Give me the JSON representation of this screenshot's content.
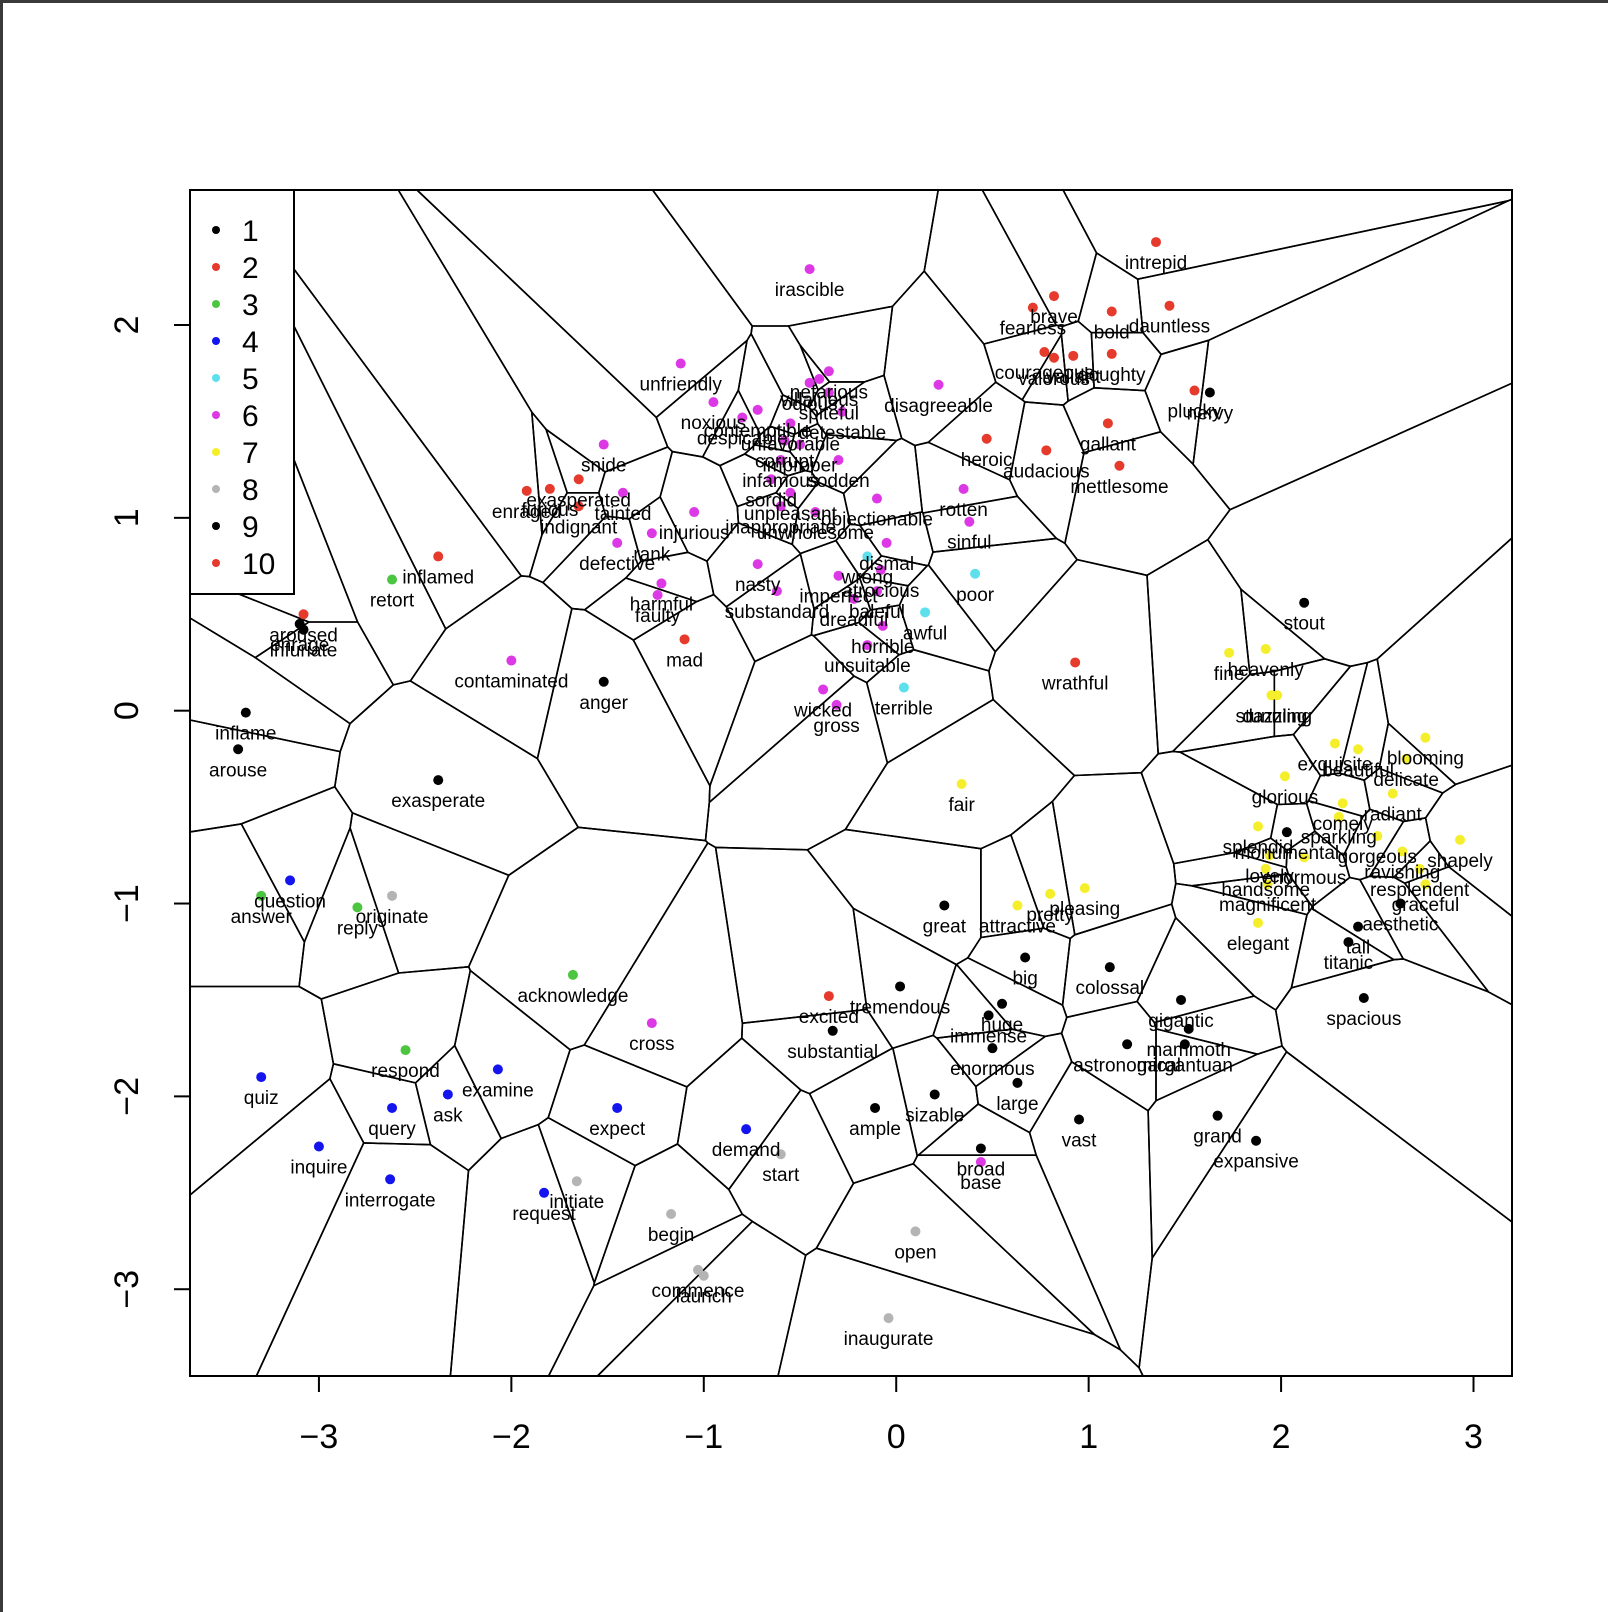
{
  "chart_data": {
    "type": "scatter",
    "title": "",
    "xlabel": "",
    "ylabel": "",
    "xlim": [
      -3.67,
      3.2
    ],
    "ylim": [
      -3.45,
      2.7
    ],
    "x_ticks": [
      -3,
      -2,
      -1,
      0,
      1,
      2,
      3
    ],
    "y_ticks": [
      -3,
      -2,
      -1,
      0,
      1,
      2
    ],
    "x_tick_labels": [
      "−3",
      "−2",
      "−1",
      "0",
      "1",
      "2",
      "3"
    ],
    "y_tick_labels": [
      "−3",
      "−2",
      "−1",
      "0",
      "1",
      "2"
    ],
    "grid": false,
    "voronoi_overlay": true,
    "legend": {
      "position": "top-left",
      "entries": [
        {
          "label": "1",
          "color": "#000000"
        },
        {
          "label": "2",
          "color": "#e53a2c"
        },
        {
          "label": "3",
          "color": "#4cc641"
        },
        {
          "label": "4",
          "color": "#1414ee"
        },
        {
          "label": "5",
          "color": "#5de0ec"
        },
        {
          "label": "6",
          "color": "#dd38e6"
        },
        {
          "label": "7",
          "color": "#f5ef2b"
        },
        {
          "label": "8",
          "color": "#b4b4b4"
        },
        {
          "label": "9",
          "color": "#000000"
        },
        {
          "label": "10",
          "color": "#e53a2c"
        }
      ]
    },
    "points": [
      {
        "label": "irascible",
        "x": -0.45,
        "y": 2.29,
        "group": 6
      },
      {
        "label": "intrepid",
        "x": 1.35,
        "y": 2.43,
        "group": 2
      },
      {
        "label": "fearless",
        "x": 0.71,
        "y": 2.09,
        "group": 2
      },
      {
        "label": "brave",
        "x": 0.82,
        "y": 2.15,
        "group": 2
      },
      {
        "label": "courageous",
        "x": 0.77,
        "y": 1.86,
        "group": 2
      },
      {
        "label": "bold",
        "x": 1.12,
        "y": 2.07,
        "group": 2
      },
      {
        "label": "dauntless",
        "x": 1.42,
        "y": 2.1,
        "group": 2
      },
      {
        "label": "valorous",
        "x": 0.82,
        "y": 1.83,
        "group": 2
      },
      {
        "label": "valiant",
        "x": 0.92,
        "y": 1.84,
        "group": 2
      },
      {
        "label": "doughty",
        "x": 1.12,
        "y": 1.85,
        "group": 2
      },
      {
        "label": "plucky",
        "x": 1.55,
        "y": 1.66,
        "group": 2
      },
      {
        "label": "nervy",
        "x": 1.63,
        "y": 1.65,
        "group": 1
      },
      {
        "label": "gallant",
        "x": 1.1,
        "y": 1.49,
        "group": 2
      },
      {
        "label": "heroic",
        "x": 0.47,
        "y": 1.41,
        "group": 2
      },
      {
        "label": "audacious",
        "x": 0.78,
        "y": 1.35,
        "group": 2
      },
      {
        "label": "mettlesome",
        "x": 1.16,
        "y": 1.27,
        "group": 2
      },
      {
        "label": "disagreeable",
        "x": 0.22,
        "y": 1.69,
        "group": 6
      },
      {
        "label": "unfriendly",
        "x": -1.12,
        "y": 1.8,
        "group": 6
      },
      {
        "label": "nefarious",
        "x": -0.35,
        "y": 1.76,
        "group": 6
      },
      {
        "label": "odious",
        "x": -0.45,
        "y": 1.7,
        "group": 6
      },
      {
        "label": "villainous",
        "x": -0.4,
        "y": 1.72,
        "group": 6
      },
      {
        "label": "spiteful",
        "x": -0.35,
        "y": 1.65,
        "group": 6
      },
      {
        "label": "detestable",
        "x": -0.28,
        "y": 1.55,
        "group": 6
      },
      {
        "label": "noxious",
        "x": -0.95,
        "y": 1.6,
        "group": 6
      },
      {
        "label": "contemptible",
        "x": -0.72,
        "y": 1.56,
        "group": 6
      },
      {
        "label": "despicable",
        "x": -0.8,
        "y": 1.52,
        "group": 6
      },
      {
        "label": "unfavorable",
        "x": -0.55,
        "y": 1.49,
        "group": 6
      },
      {
        "label": "corrupt",
        "x": -0.58,
        "y": 1.4,
        "group": 6
      },
      {
        "label": "improper",
        "x": -0.5,
        "y": 1.38,
        "group": 6
      },
      {
        "label": "sodden",
        "x": -0.3,
        "y": 1.3,
        "group": 6
      },
      {
        "label": "infamous",
        "x": -0.6,
        "y": 1.3,
        "group": 6
      },
      {
        "label": "sordid",
        "x": -0.65,
        "y": 1.2,
        "group": 6
      },
      {
        "label": "unpleasant",
        "x": -0.55,
        "y": 1.13,
        "group": 6
      },
      {
        "label": "objectionable",
        "x": -0.1,
        "y": 1.1,
        "group": 6
      },
      {
        "label": "inappropriate",
        "x": -0.6,
        "y": 1.06,
        "group": 6
      },
      {
        "label": "unwholesome",
        "x": -0.42,
        "y": 1.03,
        "group": 6
      },
      {
        "label": "snide",
        "x": -1.52,
        "y": 1.38,
        "group": 6
      },
      {
        "label": "exasperated",
        "x": -1.65,
        "y": 1.2,
        "group": 10
      },
      {
        "label": "furious",
        "x": -1.8,
        "y": 1.15,
        "group": 10
      },
      {
        "label": "enraged",
        "x": -1.92,
        "y": 1.14,
        "group": 10
      },
      {
        "label": "tainted",
        "x": -1.42,
        "y": 1.13,
        "group": 6
      },
      {
        "label": "indignant",
        "x": -1.65,
        "y": 1.06,
        "group": 10
      },
      {
        "label": "injurious",
        "x": -1.05,
        "y": 1.03,
        "group": 6
      },
      {
        "label": "rank",
        "x": -1.27,
        "y": 0.92,
        "group": 6
      },
      {
        "label": "defective",
        "x": -1.45,
        "y": 0.87,
        "group": 6
      },
      {
        "label": "rotten",
        "x": 0.35,
        "y": 1.15,
        "group": 6
      },
      {
        "label": "sinful",
        "x": 0.38,
        "y": 0.98,
        "group": 6
      },
      {
        "label": "dismal",
        "x": -0.05,
        "y": 0.87,
        "group": 6
      },
      {
        "label": "wrong",
        "x": -0.15,
        "y": 0.8,
        "group": 5
      },
      {
        "label": "imperfect",
        "x": -0.3,
        "y": 0.7,
        "group": 6
      },
      {
        "label": "atrocious",
        "x": -0.08,
        "y": 0.73,
        "group": 6
      },
      {
        "label": "baleful",
        "x": -0.1,
        "y": 0.62,
        "group": 6
      },
      {
        "label": "poor",
        "x": 0.41,
        "y": 0.71,
        "group": 5
      },
      {
        "label": "nasty",
        "x": -0.72,
        "y": 0.76,
        "group": 6
      },
      {
        "label": "dreadful",
        "x": -0.22,
        "y": 0.58,
        "group": 6
      },
      {
        "label": "harmful",
        "x": -1.22,
        "y": 0.66,
        "group": 6
      },
      {
        "label": "faulty",
        "x": -1.24,
        "y": 0.6,
        "group": 6
      },
      {
        "label": "substandard",
        "x": -0.62,
        "y": 0.62,
        "group": 6
      },
      {
        "label": "awful",
        "x": 0.15,
        "y": 0.51,
        "group": 5
      },
      {
        "label": "horrible",
        "x": -0.07,
        "y": 0.44,
        "group": 6
      },
      {
        "label": "unsuitable",
        "x": -0.15,
        "y": 0.34,
        "group": 6
      },
      {
        "label": "terrible",
        "x": 0.04,
        "y": 0.12,
        "group": 5
      },
      {
        "label": "wicked",
        "x": -0.38,
        "y": 0.11,
        "group": 6
      },
      {
        "label": "gross",
        "x": -0.31,
        "y": 0.03,
        "group": 6
      },
      {
        "label": "mad",
        "x": -1.1,
        "y": 0.37,
        "group": 10
      },
      {
        "label": "inflamed",
        "x": -2.38,
        "y": 0.8,
        "group": 10
      },
      {
        "label": "retort",
        "x": -2.62,
        "y": 0.68,
        "group": 3
      },
      {
        "label": "aroused",
        "x": -3.08,
        "y": 0.5,
        "group": 10
      },
      {
        "label": "enrage",
        "x": -3.1,
        "y": 0.45,
        "group": 1
      },
      {
        "label": "infuriate",
        "x": -3.08,
        "y": 0.42,
        "group": 1
      },
      {
        "label": "contaminated",
        "x": -2.0,
        "y": 0.26,
        "group": 6
      },
      {
        "label": "anger",
        "x": -1.52,
        "y": 0.15,
        "group": 1
      },
      {
        "label": "inflame",
        "x": -3.38,
        "y": -0.01,
        "group": 1
      },
      {
        "label": "arouse",
        "x": -3.42,
        "y": -0.2,
        "group": 1
      },
      {
        "label": "exasperate",
        "x": -2.38,
        "y": -0.36,
        "group": 1
      },
      {
        "label": "wrathful",
        "x": 0.93,
        "y": 0.25,
        "group": 2
      },
      {
        "label": "fair",
        "x": 0.34,
        "y": -0.38,
        "group": 7
      },
      {
        "label": "stout",
        "x": 2.12,
        "y": 0.56,
        "group": 1
      },
      {
        "label": "fine",
        "x": 1.73,
        "y": 0.3,
        "group": 7
      },
      {
        "label": "heavenly",
        "x": 1.92,
        "y": 0.32,
        "group": 7
      },
      {
        "label": "stunning",
        "x": 1.95,
        "y": 0.08,
        "group": 7
      },
      {
        "label": "dazzling",
        "x": 1.98,
        "y": 0.08,
        "group": 7
      },
      {
        "label": "glorious",
        "x": 2.02,
        "y": -0.34,
        "group": 7
      },
      {
        "label": "exquisite",
        "x": 2.28,
        "y": -0.17,
        "group": 7
      },
      {
        "label": "blooming",
        "x": 2.75,
        "y": -0.14,
        "group": 7
      },
      {
        "label": "delicate",
        "x": 2.65,
        "y": -0.25,
        "group": 7
      },
      {
        "label": "beautiful",
        "x": 2.4,
        "y": -0.2,
        "group": 7
      },
      {
        "label": "splendid",
        "x": 1.88,
        "y": -0.6,
        "group": 7
      },
      {
        "label": "sparkling",
        "x": 2.3,
        "y": -0.55,
        "group": 7
      },
      {
        "label": "radiant",
        "x": 2.58,
        "y": -0.43,
        "group": 7
      },
      {
        "label": "comely",
        "x": 2.32,
        "y": -0.48,
        "group": 7
      },
      {
        "label": "gorgeous",
        "x": 2.5,
        "y": -0.65,
        "group": 7
      },
      {
        "label": "lovely",
        "x": 1.94,
        "y": -0.75,
        "group": 7
      },
      {
        "label": "monumental",
        "x": 2.03,
        "y": -0.63,
        "group": 1
      },
      {
        "label": "enormous",
        "x": 2.12,
        "y": -0.76,
        "group": 7
      },
      {
        "label": "ravishing",
        "x": 2.63,
        "y": -0.73,
        "group": 7
      },
      {
        "label": "shapely",
        "x": 2.93,
        "y": -0.67,
        "group": 7
      },
      {
        "label": "resplendent",
        "x": 2.72,
        "y": -0.82,
        "group": 7
      },
      {
        "label": "handsome",
        "x": 1.92,
        "y": -0.82,
        "group": 7
      },
      {
        "label": "graceful",
        "x": 2.75,
        "y": -0.9,
        "group": 7
      },
      {
        "label": "magnificent",
        "x": 1.93,
        "y": -0.9,
        "group": 7
      },
      {
        "label": "aesthetic",
        "x": 2.62,
        "y": -1.0,
        "group": 1
      },
      {
        "label": "tall",
        "x": 2.4,
        "y": -1.12,
        "group": 1
      },
      {
        "label": "elegant",
        "x": 1.88,
        "y": -1.1,
        "group": 7
      },
      {
        "label": "titanic",
        "x": 2.35,
        "y": -1.2,
        "group": 1
      },
      {
        "label": "spacious",
        "x": 2.43,
        "y": -1.49,
        "group": 1
      },
      {
        "label": "pleasing",
        "x": 0.98,
        "y": -0.92,
        "group": 7
      },
      {
        "label": "pretty",
        "x": 0.8,
        "y": -0.95,
        "group": 7
      },
      {
        "label": "attractive",
        "x": 0.63,
        "y": -1.01,
        "group": 7
      },
      {
        "label": "great",
        "x": 0.25,
        "y": -1.01,
        "group": 1
      },
      {
        "label": "big",
        "x": 0.67,
        "y": -1.28,
        "group": 1
      },
      {
        "label": "colossal",
        "x": 1.11,
        "y": -1.33,
        "group": 1
      },
      {
        "label": "gigantic",
        "x": 1.48,
        "y": -1.5,
        "group": 1
      },
      {
        "label": "huge",
        "x": 0.55,
        "y": -1.52,
        "group": 1
      },
      {
        "label": "immense",
        "x": 0.48,
        "y": -1.58,
        "group": 1
      },
      {
        "label": "tremendous",
        "x": 0.02,
        "y": -1.43,
        "group": 1
      },
      {
        "label": "excited",
        "x": -0.35,
        "y": -1.48,
        "group": 10
      },
      {
        "label": "substantial",
        "x": -0.33,
        "y": -1.66,
        "group": 1
      },
      {
        "label": "gargantuan",
        "x": 1.5,
        "y": -1.73,
        "group": 1
      },
      {
        "label": "mammoth",
        "x": 1.52,
        "y": -1.65,
        "group": 1
      },
      {
        "label": "astronomical",
        "x": 1.2,
        "y": -1.73,
        "group": 1
      },
      {
        "label": "enormous",
        "x": 0.5,
        "y": -1.75,
        "group": 1
      },
      {
        "label": "large",
        "x": 0.63,
        "y": -1.93,
        "group": 1
      },
      {
        "label": "vast",
        "x": 0.95,
        "y": -2.12,
        "group": 1
      },
      {
        "label": "sizable",
        "x": 0.2,
        "y": -1.99,
        "group": 1
      },
      {
        "label": "ample",
        "x": -0.11,
        "y": -2.06,
        "group": 1
      },
      {
        "label": "grand",
        "x": 1.67,
        "y": -2.1,
        "group": 1
      },
      {
        "label": "expansive",
        "x": 1.87,
        "y": -2.23,
        "group": 1
      },
      {
        "label": "broad",
        "x": 0.44,
        "y": -2.27,
        "group": 1
      },
      {
        "label": "base",
        "x": 0.44,
        "y": -2.34,
        "group": 6
      },
      {
        "label": "open",
        "x": 0.1,
        "y": -2.7,
        "group": 8
      },
      {
        "label": "inaugurate",
        "x": -0.04,
        "y": -3.15,
        "group": 8
      },
      {
        "label": "commence",
        "x": -1.03,
        "y": -2.9,
        "group": 8
      },
      {
        "label": "launch",
        "x": -1.0,
        "y": -2.93,
        "group": 8
      },
      {
        "label": "begin",
        "x": -1.17,
        "y": -2.61,
        "group": 8
      },
      {
        "label": "start",
        "x": -0.6,
        "y": -2.3,
        "group": 8
      },
      {
        "label": "demand",
        "x": -0.78,
        "y": -2.17,
        "group": 4
      },
      {
        "label": "expect",
        "x": -1.45,
        "y": -2.06,
        "group": 4
      },
      {
        "label": "initiate",
        "x": -1.66,
        "y": -2.44,
        "group": 8
      },
      {
        "label": "request",
        "x": -1.83,
        "y": -2.5,
        "group": 4
      },
      {
        "label": "cross",
        "x": -1.27,
        "y": -1.62,
        "group": 6
      },
      {
        "label": "acknowledge",
        "x": -1.68,
        "y": -1.37,
        "group": 3
      },
      {
        "label": "examine",
        "x": -2.07,
        "y": -1.86,
        "group": 4
      },
      {
        "label": "ask",
        "x": -2.33,
        "y": -1.99,
        "group": 4
      },
      {
        "label": "respond",
        "x": -2.55,
        "y": -1.76,
        "group": 3
      },
      {
        "label": "query",
        "x": -2.62,
        "y": -2.06,
        "group": 4
      },
      {
        "label": "interrogate",
        "x": -2.63,
        "y": -2.43,
        "group": 4
      },
      {
        "label": "inquire",
        "x": -3.0,
        "y": -2.26,
        "group": 4
      },
      {
        "label": "quiz",
        "x": -3.3,
        "y": -1.9,
        "group": 4
      },
      {
        "label": "question",
        "x": -3.15,
        "y": -0.88,
        "group": 4
      },
      {
        "label": "answer",
        "x": -3.3,
        "y": -0.96,
        "group": 3
      },
      {
        "label": "reply",
        "x": -2.8,
        "y": -1.02,
        "group": 3
      },
      {
        "label": "originate",
        "x": -2.62,
        "y": -0.96,
        "group": 8
      }
    ]
  }
}
